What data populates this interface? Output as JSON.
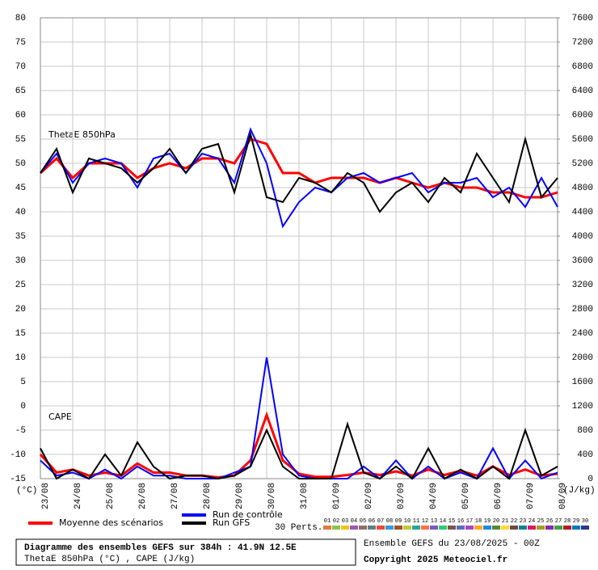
{
  "chart_data": {
    "type": "line",
    "title": "Diagramme des ensembles GEFS sur 384h : 41.9N 12.5E",
    "subtitle": "ThetaE 850hPa (°C) , CAPE (J/kg)",
    "run_info": "Ensemble GEFS du 23/08/2025 - 00Z",
    "copyright": "Copyright 2025 Meteociel.fr",
    "ylabel": "(°C)",
    "y2label": "(J/kg)",
    "annotations": [
      "ThetaE 850hPa",
      "CAPE"
    ],
    "perturbations_label": "30 Perts.",
    "perturbations": [
      {
        "name": "01",
        "color": "#e07b39"
      },
      {
        "name": "02",
        "color": "#8bc34a"
      },
      {
        "name": "03",
        "color": "#f0c419"
      },
      {
        "name": "04",
        "color": "#9b59b6"
      },
      {
        "name": "05",
        "color": "#8d6e63"
      },
      {
        "name": "06",
        "color": "#607d8b"
      },
      {
        "name": "07",
        "color": "#e74c3c"
      },
      {
        "name": "08",
        "color": "#3498db"
      },
      {
        "name": "09",
        "color": "#a0522d"
      },
      {
        "name": "10",
        "color": "#c0ca33"
      },
      {
        "name": "11",
        "color": "#26a69a"
      },
      {
        "name": "12",
        "color": "#ff7043"
      },
      {
        "name": "13",
        "color": "#7e57c2"
      },
      {
        "name": "14",
        "color": "#2ecc71"
      },
      {
        "name": "15",
        "color": "#795548"
      },
      {
        "name": "16",
        "color": "#5c6bc0"
      },
      {
        "name": "17",
        "color": "#ab47bc"
      },
      {
        "name": "18",
        "color": "#ffa726"
      },
      {
        "name": "19",
        "color": "#1e88e5"
      },
      {
        "name": "20",
        "color": "#558b2f"
      },
      {
        "name": "21",
        "color": "#fdd835"
      },
      {
        "name": "22",
        "color": "#6d4c41"
      },
      {
        "name": "23",
        "color": "#00838f"
      },
      {
        "name": "24",
        "color": "#d81b60"
      },
      {
        "name": "25",
        "color": "#9e9d24"
      },
      {
        "name": "26",
        "color": "#8e24aa"
      },
      {
        "name": "27",
        "color": "#43a047"
      },
      {
        "name": "28",
        "color": "#b71c1c"
      },
      {
        "name": "29",
        "color": "#0277bd"
      },
      {
        "name": "30",
        "color": "#283593"
      }
    ],
    "x": [
      0,
      0.5,
      1,
      1.5,
      2,
      2.5,
      3,
      3.5,
      4,
      4.5,
      5,
      5.5,
      6,
      6.5,
      7,
      7.5,
      8,
      8.5,
      9,
      9.5,
      10,
      10.5,
      11,
      11.5,
      12,
      12.5,
      13,
      13.5,
      14,
      14.5,
      15,
      15.5,
      16
    ],
    "xlim": [
      0,
      16
    ],
    "xticks": [
      {
        "value": 0,
        "label": "23/08"
      },
      {
        "value": 1,
        "label": "24/08"
      },
      {
        "value": 2,
        "label": "25/08"
      },
      {
        "value": 3,
        "label": "26/08"
      },
      {
        "value": 4,
        "label": "27/08"
      },
      {
        "value": 5,
        "label": "28/08"
      },
      {
        "value": 6,
        "label": "29/08"
      },
      {
        "value": 7,
        "label": "30/08"
      },
      {
        "value": 8,
        "label": "31/08"
      },
      {
        "value": 9,
        "label": "01/09"
      },
      {
        "value": 10,
        "label": "02/09"
      },
      {
        "value": 11,
        "label": "03/09"
      },
      {
        "value": 12,
        "label": "04/09"
      },
      {
        "value": 13,
        "label": "05/09"
      },
      {
        "value": 14,
        "label": "06/09"
      },
      {
        "value": 15,
        "label": "07/09"
      },
      {
        "value": 16,
        "label": "08/09"
      }
    ],
    "ylim": [
      -15,
      80
    ],
    "yticks": [
      -15,
      -10,
      -5,
      0,
      5,
      10,
      15,
      20,
      25,
      30,
      35,
      40,
      45,
      50,
      55,
      60,
      65,
      70,
      75,
      80
    ],
    "y2lim": [
      0,
      7600
    ],
    "y2ticks": [
      0,
      400,
      800,
      1200,
      1600,
      2000,
      2400,
      2800,
      3200,
      3600,
      4000,
      4400,
      4800,
      5200,
      5600,
      6000,
      6400,
      6800,
      7200,
      7600
    ],
    "grid": true,
    "series": [
      {
        "name": "Moyenne des scénarios",
        "color": "#ff0000",
        "width": 3,
        "values": [
          48,
          51,
          47,
          50,
          50,
          50,
          47,
          49,
          50,
          49,
          51,
          51,
          50,
          55,
          54,
          48,
          48,
          46,
          47,
          47,
          47,
          46,
          47,
          46,
          45,
          46,
          45,
          45,
          44,
          44,
          43,
          43,
          44
        ]
      },
      {
        "name": "Run de contrôle",
        "color": "#0000ff",
        "width": 2,
        "values": [
          48,
          52,
          46,
          50,
          51,
          50,
          45,
          51,
          52,
          48,
          52,
          51,
          46,
          57,
          50,
          37,
          42,
          45,
          44,
          47,
          48,
          46,
          47,
          48,
          44,
          46,
          46,
          47,
          43,
          45,
          41,
          47,
          41
        ]
      },
      {
        "name": "Run GFS",
        "color": "#000000",
        "width": 2,
        "values": [
          48,
          53,
          44,
          51,
          50,
          49,
          46,
          49,
          53,
          48,
          53,
          54,
          44,
          56,
          43,
          42,
          47,
          46,
          44,
          48,
          46,
          40,
          44,
          46,
          42,
          47,
          44,
          52,
          47,
          42,
          55,
          43,
          47
        ]
      },
      {
        "name": "Moyenne des scénarios",
        "color": "#ff0000",
        "width": 3,
        "axis": "y2",
        "values": [
          400,
          100,
          150,
          50,
          100,
          50,
          250,
          100,
          100,
          50,
          50,
          20,
          50,
          300,
          1050,
          300,
          80,
          30,
          30,
          60,
          100,
          60,
          120,
          50,
          150,
          60,
          130,
          50,
          200,
          60,
          150,
          50,
          80
        ]
      },
      {
        "name": "Run de contrôle",
        "color": "#0000ff",
        "width": 2,
        "axis": "y2",
        "values": [
          300,
          50,
          100,
          0,
          150,
          0,
          200,
          50,
          50,
          0,
          0,
          0,
          100,
          200,
          2000,
          400,
          50,
          0,
          0,
          0,
          200,
          0,
          300,
          0,
          200,
          0,
          100,
          0,
          500,
          0,
          300,
          0,
          100
        ]
      },
      {
        "name": "Run GFS",
        "color": "#000000",
        "width": 2,
        "axis": "y2",
        "values": [
          500,
          0,
          150,
          0,
          400,
          50,
          600,
          200,
          0,
          50,
          50,
          0,
          50,
          200,
          800,
          200,
          0,
          0,
          0,
          900,
          100,
          0,
          200,
          0,
          500,
          0,
          150,
          0,
          200,
          0,
          800,
          50,
          200
        ]
      }
    ]
  }
}
